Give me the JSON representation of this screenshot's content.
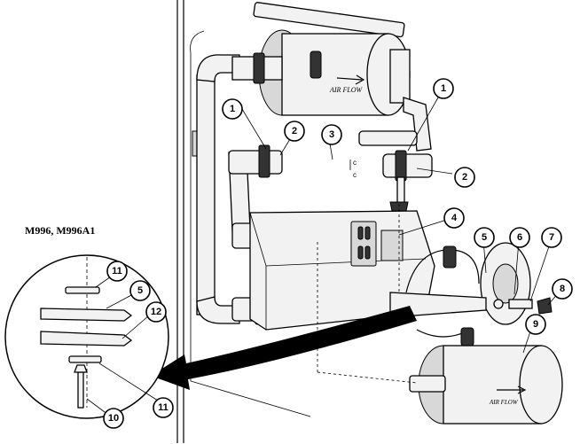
{
  "model_label": "M996, M996A1",
  "filter_text": "AIR FLOW",
  "callouts": {
    "c1a": "1",
    "c1b": "1",
    "c2a": "2",
    "c2b": "2",
    "c3": "3",
    "c4": "4",
    "c5": "5",
    "c6": "6",
    "c7": "7",
    "c8": "8",
    "c9": "9",
    "d11a": "11",
    "d5": "5",
    "d12": "12",
    "d11b": "11",
    "d10": "10"
  }
}
